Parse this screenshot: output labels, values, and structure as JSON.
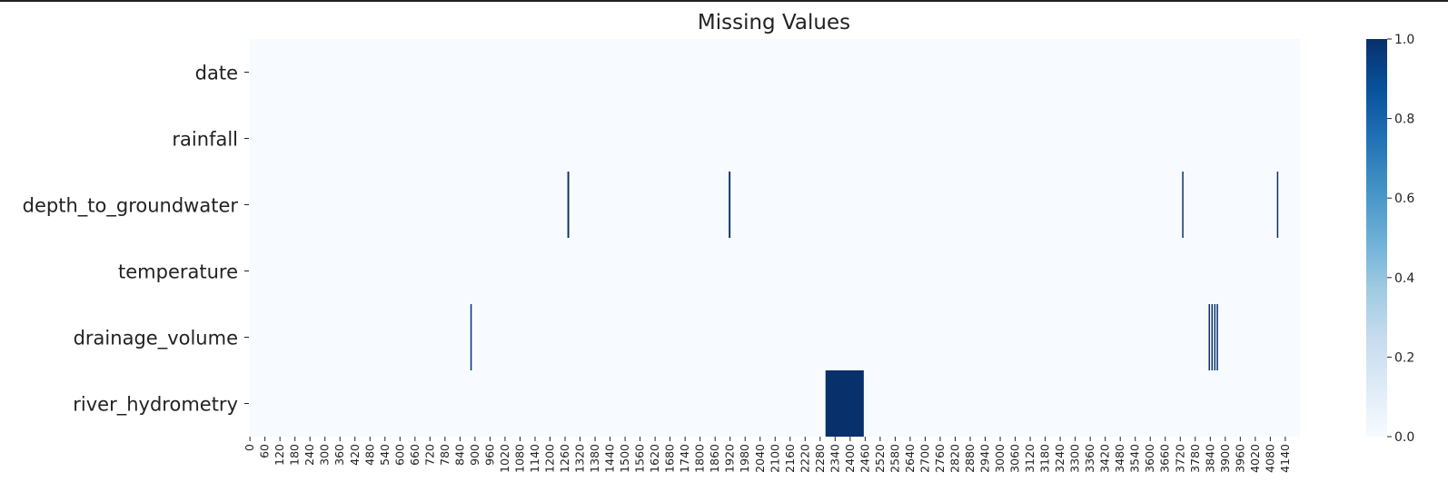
{
  "chart_data": {
    "type": "heatmap",
    "title": "Missing Values",
    "xlabel": "",
    "ylabel": "",
    "rows": [
      "date",
      "rainfall",
      "depth_to_groundwater",
      "temperature",
      "drainage_volume",
      "river_hydrometry"
    ],
    "n_columns": 4199,
    "x_tick_labels": [
      0,
      60,
      120,
      180,
      240,
      300,
      360,
      420,
      480,
      540,
      600,
      660,
      720,
      780,
      840,
      900,
      960,
      1020,
      1080,
      1140,
      1200,
      1260,
      1320,
      1380,
      1440,
      1500,
      1560,
      1620,
      1680,
      1740,
      1800,
      1860,
      1920,
      1980,
      2040,
      2100,
      2160,
      2220,
      2280,
      2340,
      2400,
      2460,
      2520,
      2580,
      2640,
      2700,
      2760,
      2820,
      2880,
      2940,
      3000,
      3060,
      3120,
      3180,
      3240,
      3300,
      3360,
      3420,
      3480,
      3540,
      3600,
      3660,
      3720,
      3780,
      3840,
      3900,
      3960,
      4020,
      4080,
      4140
    ],
    "missing": [
      {
        "row": "depth_to_groundwater",
        "start": 1270,
        "end": 1277
      },
      {
        "row": "depth_to_groundwater",
        "start": 1915,
        "end": 1922
      },
      {
        "row": "depth_to_groundwater",
        "start": 3728,
        "end": 3732
      },
      {
        "row": "depth_to_groundwater",
        "start": 4107,
        "end": 4111
      },
      {
        "row": "drainage_volume",
        "start": 882,
        "end": 886
      },
      {
        "row": "drainage_volume",
        "start": 3834,
        "end": 3838
      },
      {
        "row": "drainage_volume",
        "start": 3845,
        "end": 3849
      },
      {
        "row": "drainage_volume",
        "start": 3856,
        "end": 3860
      },
      {
        "row": "drainage_volume",
        "start": 3866,
        "end": 3870
      },
      {
        "row": "river_hydrometry",
        "start": 2302,
        "end": 2455
      }
    ],
    "colorbar": {
      "min": 0.0,
      "max": 1.0,
      "ticks": [
        "0.0",
        "0.2",
        "0.4",
        "0.6",
        "0.8",
        "1.0"
      ],
      "colormap": "Blues",
      "low_color": "#f7fbff",
      "high_color": "#08306b"
    },
    "grid": false,
    "legend": "none"
  }
}
